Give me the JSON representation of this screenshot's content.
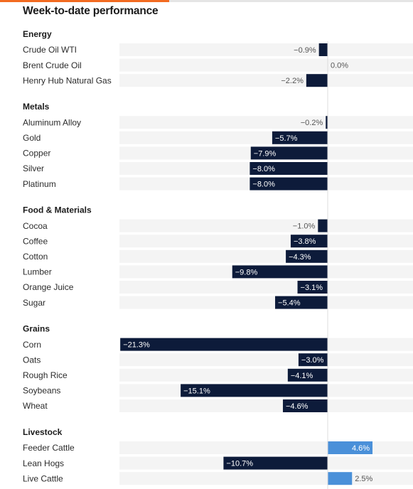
{
  "title": "Week-to-date performance",
  "colors": {
    "accent": "#f26b21",
    "negative": "#0d1b3a",
    "positive": "#4a90d9",
    "row_background": "#f4f4f4"
  },
  "chart_data": {
    "type": "bar",
    "orientation": "horizontal",
    "value_unit": "%",
    "groups": [
      {
        "name": "Energy",
        "items": [
          {
            "label": "Crude Oil WTI",
            "value": -0.9,
            "display": "−0.9%"
          },
          {
            "label": "Brent Crude Oil",
            "value": 0.0,
            "display": "0.0%"
          },
          {
            "label": "Henry Hub Natural Gas",
            "value": -2.2,
            "display": "−2.2%"
          }
        ]
      },
      {
        "name": "Metals",
        "items": [
          {
            "label": "Aluminum Alloy",
            "value": -0.2,
            "display": "−0.2%"
          },
          {
            "label": "Gold",
            "value": -5.7,
            "display": "−5.7%"
          },
          {
            "label": "Copper",
            "value": -7.9,
            "display": "−7.9%"
          },
          {
            "label": "Silver",
            "value": -8.0,
            "display": "−8.0%"
          },
          {
            "label": "Platinum",
            "value": -8.0,
            "display": "−8.0%"
          }
        ]
      },
      {
        "name": "Food & Materials",
        "items": [
          {
            "label": "Cocoa",
            "value": -1.0,
            "display": "−1.0%"
          },
          {
            "label": "Coffee",
            "value": -3.8,
            "display": "−3.8%"
          },
          {
            "label": "Cotton",
            "value": -4.3,
            "display": "−4.3%"
          },
          {
            "label": "Lumber",
            "value": -9.8,
            "display": "−9.8%"
          },
          {
            "label": "Orange Juice",
            "value": -3.1,
            "display": "−3.1%"
          },
          {
            "label": "Sugar",
            "value": -5.4,
            "display": "−5.4%"
          }
        ]
      },
      {
        "name": "Grains",
        "items": [
          {
            "label": "Corn",
            "value": -21.3,
            "display": "−21.3%"
          },
          {
            "label": "Oats",
            "value": -3.0,
            "display": "−3.0%"
          },
          {
            "label": "Rough Rice",
            "value": -4.1,
            "display": "−4.1%"
          },
          {
            "label": "Soybeans",
            "value": -15.1,
            "display": "−15.1%"
          },
          {
            "label": "Wheat",
            "value": -4.6,
            "display": "−4.6%"
          }
        ]
      },
      {
        "name": "Livestock",
        "items": [
          {
            "label": "Feeder Cattle",
            "value": 4.6,
            "display": "4.6%"
          },
          {
            "label": "Lean Hogs",
            "value": -10.7,
            "display": "−10.7%"
          },
          {
            "label": "Live Cattle",
            "value": 2.5,
            "display": "2.5%"
          }
        ]
      }
    ]
  }
}
